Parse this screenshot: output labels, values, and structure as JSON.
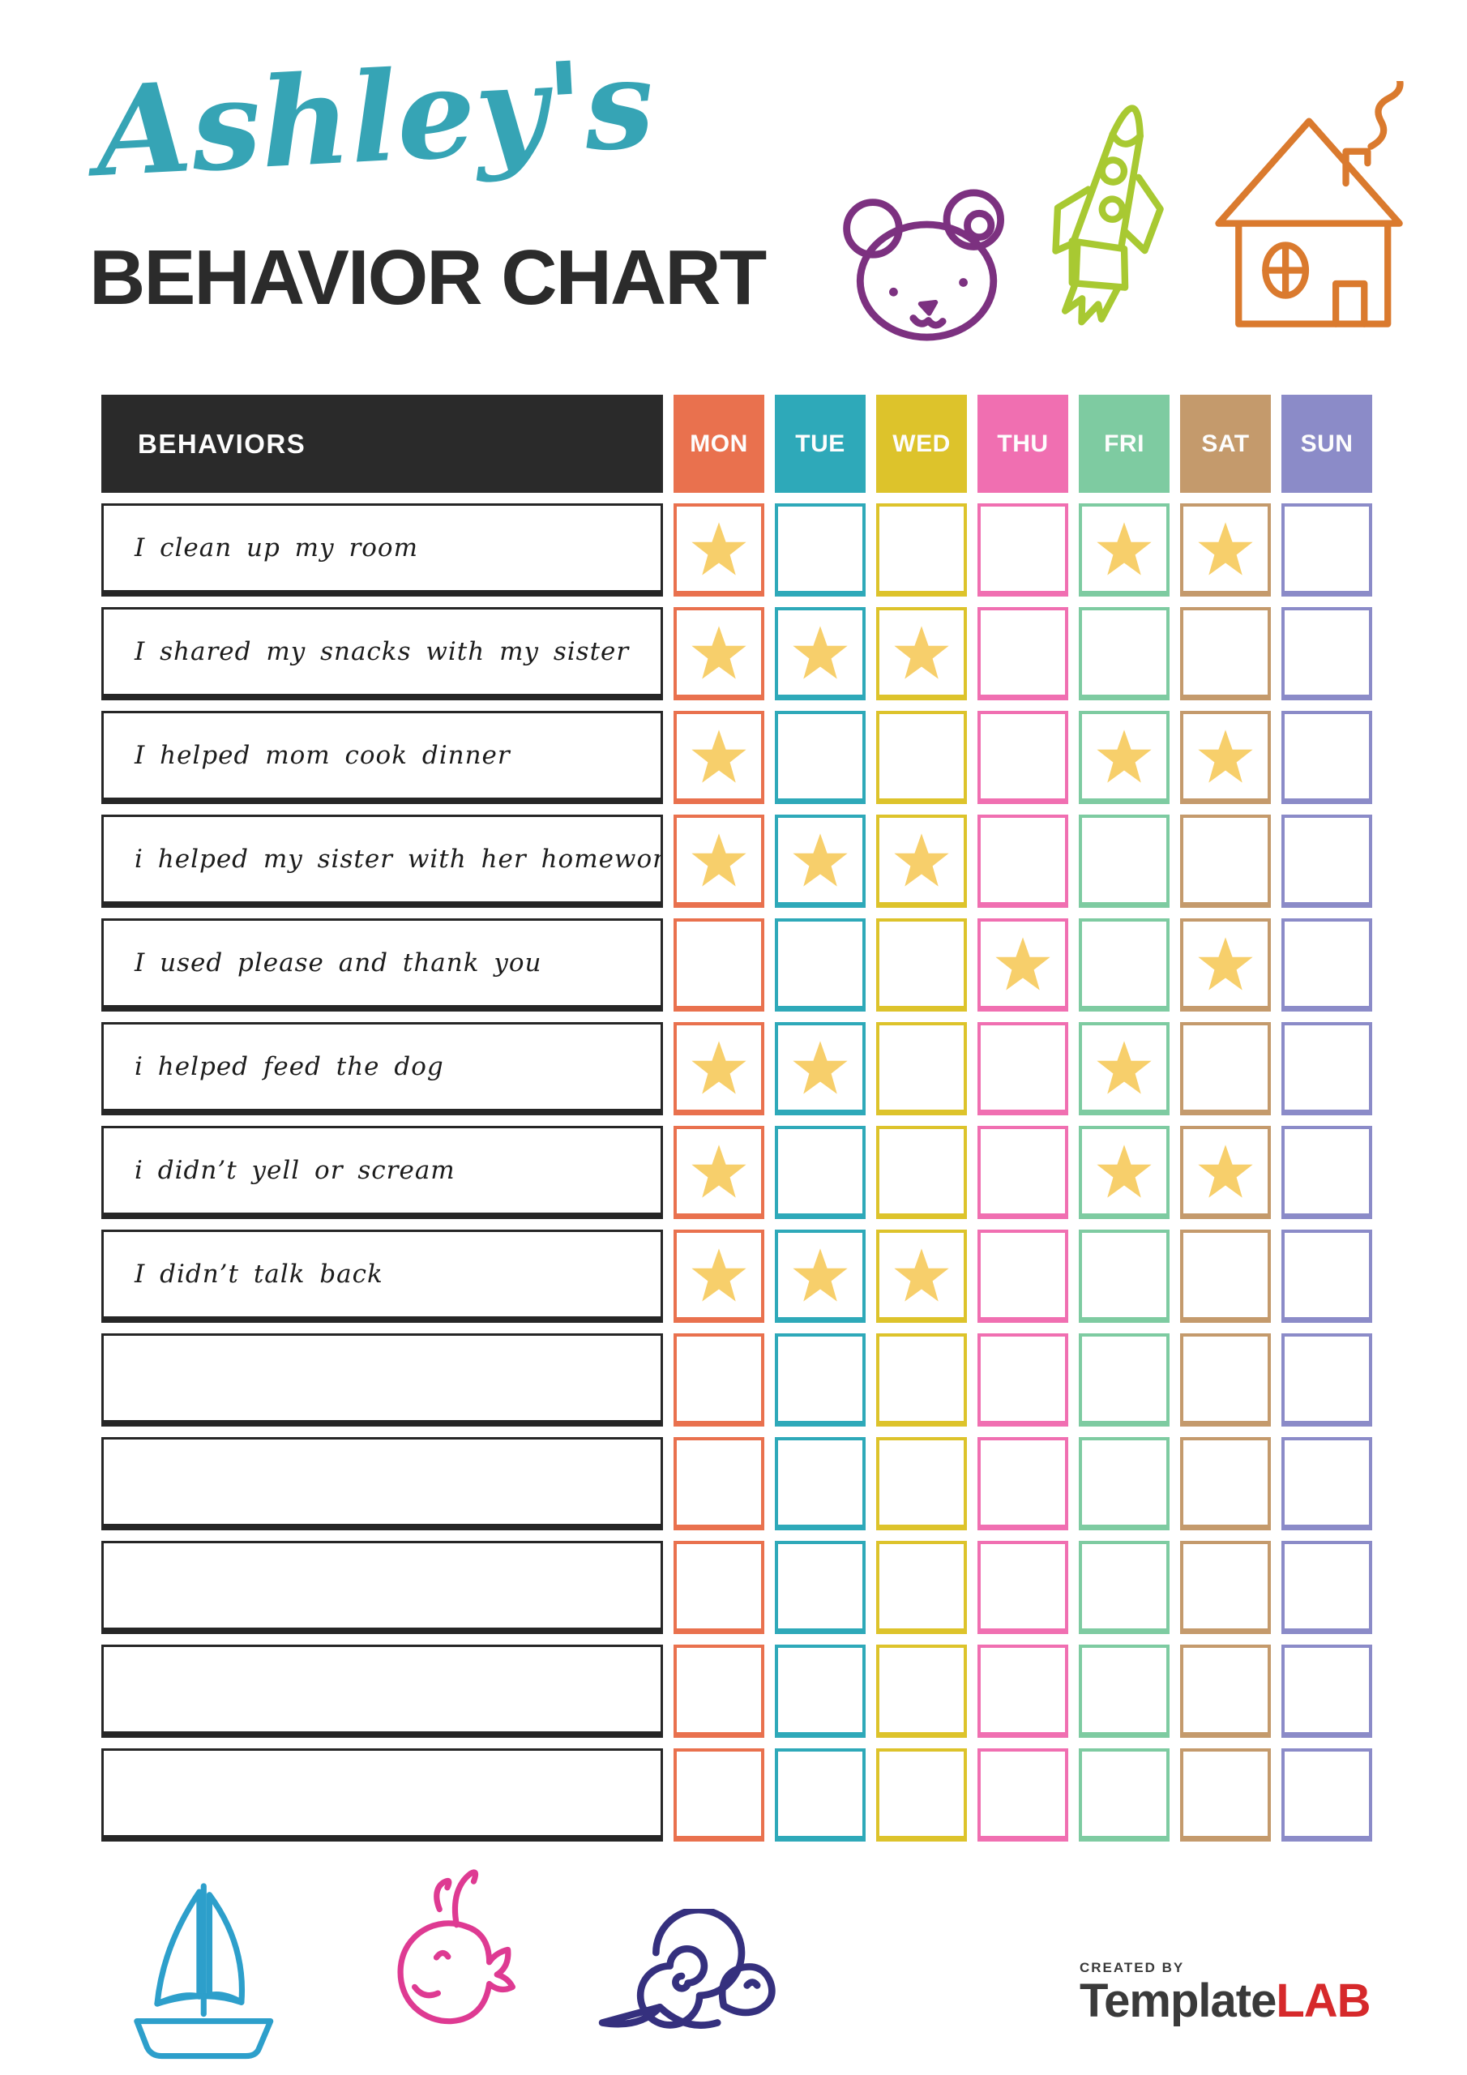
{
  "page": {
    "title_script": "Ashley's",
    "title_main": "BEHAVIOR CHART"
  },
  "colors": {
    "title_script": "#36a4b5",
    "title_main": "#2b2b2b",
    "behaviors_header_bg": "#2a2a2a",
    "star": "#f7cf6b",
    "bear": "#7c3180",
    "rocket": "#a8c932",
    "house": "#da7a2e",
    "sailboat": "#2d9fcb",
    "whale": "#de3a92",
    "snail": "#35307e",
    "logo_red": "#d6292b"
  },
  "decorations": {
    "top_icons": [
      "bear-doodle-icon",
      "rocket-doodle-icon",
      "house-doodle-icon"
    ],
    "bottom_icons": [
      "sailboat-doodle-icon",
      "whale-doodle-icon",
      "snail-doodle-icon"
    ]
  },
  "table": {
    "behaviors_header": "BEHAVIORS",
    "days": [
      {
        "label": "MON",
        "color": "#e9714e"
      },
      {
        "label": "TUE",
        "color": "#2ea9b9"
      },
      {
        "label": "WED",
        "color": "#ddc32b"
      },
      {
        "label": "THU",
        "color": "#f06fb1"
      },
      {
        "label": "FRI",
        "color": "#7ecba1"
      },
      {
        "label": "SAT",
        "color": "#c49a6c"
      },
      {
        "label": "SUN",
        "color": "#8b8bc8"
      }
    ],
    "rows": [
      {
        "label": "I clean up my room",
        "stars": [
          1,
          0,
          0,
          0,
          1,
          1,
          0
        ]
      },
      {
        "label": "I shared my snacks with my sister",
        "stars": [
          1,
          1,
          1,
          0,
          0,
          0,
          0
        ]
      },
      {
        "label": "I helped mom cook dinner",
        "stars": [
          1,
          0,
          0,
          0,
          1,
          1,
          0
        ]
      },
      {
        "label": "i helped my sister with her homework",
        "stars": [
          1,
          1,
          1,
          0,
          0,
          0,
          0
        ]
      },
      {
        "label": "I used please and thank you",
        "stars": [
          0,
          0,
          0,
          1,
          0,
          1,
          0
        ]
      },
      {
        "label": "i helped feed the dog",
        "stars": [
          1,
          1,
          0,
          0,
          1,
          0,
          0
        ]
      },
      {
        "label": "i didn’t yell or scream",
        "stars": [
          1,
          0,
          0,
          0,
          1,
          1,
          0
        ]
      },
      {
        "label": "I didn’t talk back",
        "stars": [
          1,
          1,
          1,
          0,
          0,
          0,
          0
        ]
      },
      {
        "label": "",
        "stars": [
          0,
          0,
          0,
          0,
          0,
          0,
          0
        ]
      },
      {
        "label": "",
        "stars": [
          0,
          0,
          0,
          0,
          0,
          0,
          0
        ]
      },
      {
        "label": "",
        "stars": [
          0,
          0,
          0,
          0,
          0,
          0,
          0
        ]
      },
      {
        "label": "",
        "stars": [
          0,
          0,
          0,
          0,
          0,
          0,
          0
        ]
      },
      {
        "label": "",
        "stars": [
          0,
          0,
          0,
          0,
          0,
          0,
          0
        ]
      }
    ]
  },
  "footer": {
    "created_by": "CREATED BY",
    "brand_primary": "Template",
    "brand_secondary": "LAB"
  }
}
